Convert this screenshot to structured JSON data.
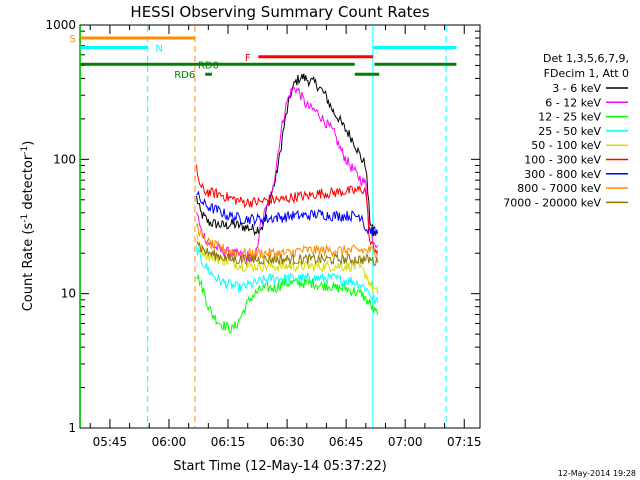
{
  "chart_data": {
    "type": "line",
    "title": "HESSI Observing Summary Count Rates",
    "xlabel": "Start Time (12-May-14 05:37:22)",
    "ylabel_prefix": "Count Rate (s",
    "ylabel_sup1": "-1",
    "ylabel_mid": " detector",
    "ylabel_sup2": "-1",
    "ylabel_suffix": ")",
    "ylabel": "Count Rate (s-1 detector-1)",
    "y_scale": "log",
    "ylim": [
      1,
      1000
    ],
    "xlim_min": [
      337.4,
      439
    ],
    "x_ticks": [
      {
        "t": 345,
        "label": "05:45"
      },
      {
        "t": 360,
        "label": "06:00"
      },
      {
        "t": 375,
        "label": "06:15"
      },
      {
        "t": 390,
        "label": "06:30"
      },
      {
        "t": 405,
        "label": "06:45"
      },
      {
        "t": 420,
        "label": "07:00"
      },
      {
        "t": 435,
        "label": "07:15"
      }
    ],
    "y_ticks": [
      {
        "v": 1,
        "label": "1"
      },
      {
        "v": 10,
        "label": "10"
      },
      {
        "v": 100,
        "label": "100"
      },
      {
        "v": 1000,
        "label": "1000"
      }
    ],
    "legend_header": [
      "Det 1,3,5,6,7,9,",
      "FDecim 1, Att 0"
    ],
    "legend_position": "right",
    "series": [
      {
        "name": "3 - 6 keV",
        "color": "#000000",
        "points": [
          [
            367,
            52
          ],
          [
            368,
            40
          ],
          [
            370,
            34
          ],
          [
            372,
            33
          ],
          [
            374,
            32
          ],
          [
            376,
            33
          ],
          [
            378,
            32
          ],
          [
            380,
            31
          ],
          [
            382,
            30
          ],
          [
            384,
            32
          ],
          [
            385,
            45
          ],
          [
            386,
            55
          ],
          [
            387,
            70
          ],
          [
            388,
            100
          ],
          [
            389,
            160
          ],
          [
            390,
            230
          ],
          [
            391,
            310
          ],
          [
            392,
            370
          ],
          [
            393,
            400
          ],
          [
            394,
            410
          ],
          [
            395,
            395
          ],
          [
            396,
            380
          ],
          [
            397,
            370
          ],
          [
            398,
            350
          ],
          [
            399,
            320
          ],
          [
            400,
            290
          ],
          [
            401,
            250
          ],
          [
            402,
            220
          ],
          [
            403,
            205
          ],
          [
            404,
            180
          ],
          [
            405,
            165
          ],
          [
            406,
            150
          ],
          [
            407,
            135
          ],
          [
            408,
            115
          ],
          [
            409,
            100
          ],
          [
            410,
            90
          ],
          [
            411,
            36
          ],
          [
            412,
            28
          ],
          [
            413,
            28
          ]
        ]
      },
      {
        "name": "6 - 12 keV",
        "color": "#ff00ff",
        "points": [
          [
            367,
            42
          ],
          [
            368,
            30
          ],
          [
            370,
            24
          ],
          [
            373,
            21
          ],
          [
            376,
            20
          ],
          [
            379,
            19
          ],
          [
            381,
            18
          ],
          [
            382,
            18
          ],
          [
            383,
            30
          ],
          [
            384,
            38
          ],
          [
            385,
            45
          ],
          [
            386,
            55
          ],
          [
            387,
            80
          ],
          [
            388,
            130
          ],
          [
            389,
            200
          ],
          [
            390,
            270
          ],
          [
            391,
            320
          ],
          [
            392,
            340
          ],
          [
            393,
            320
          ],
          [
            394,
            280
          ],
          [
            395,
            250
          ],
          [
            396,
            240
          ],
          [
            397,
            230
          ],
          [
            398,
            220
          ],
          [
            399,
            200
          ],
          [
            400,
            185
          ],
          [
            401,
            170
          ],
          [
            402,
            155
          ],
          [
            403,
            130
          ],
          [
            404,
            112
          ],
          [
            405,
            100
          ],
          [
            406,
            90
          ],
          [
            407,
            82
          ],
          [
            408,
            75
          ],
          [
            409,
            70
          ],
          [
            410,
            65
          ],
          [
            411,
            30
          ],
          [
            412,
            25
          ],
          [
            413,
            23
          ]
        ]
      },
      {
        "name": "12 - 25 keV",
        "color": "#00ff00",
        "points": [
          [
            367,
            14
          ],
          [
            368,
            12
          ],
          [
            369,
            10
          ],
          [
            370,
            8
          ],
          [
            371,
            7
          ],
          [
            372,
            6.5
          ],
          [
            373,
            6
          ],
          [
            374,
            5.8
          ],
          [
            375,
            5.6
          ],
          [
            376,
            5.4
          ],
          [
            377,
            5.8
          ],
          [
            378,
            6.5
          ],
          [
            379,
            7.5
          ],
          [
            380,
            8.5
          ],
          [
            381,
            9.5
          ],
          [
            382,
            10
          ],
          [
            383,
            10.5
          ],
          [
            384,
            11
          ],
          [
            385,
            11
          ],
          [
            386,
            11
          ],
          [
            387,
            11
          ],
          [
            388,
            11.5
          ],
          [
            389,
            12
          ],
          [
            390,
            12
          ],
          [
            391,
            12
          ],
          [
            392,
            12
          ],
          [
            393,
            12
          ],
          [
            394,
            12
          ],
          [
            395,
            12
          ],
          [
            396,
            12
          ],
          [
            397,
            12
          ],
          [
            398,
            11.5
          ],
          [
            399,
            11.5
          ],
          [
            400,
            11.5
          ],
          [
            401,
            11.5
          ],
          [
            402,
            11
          ],
          [
            403,
            11
          ],
          [
            404,
            11
          ],
          [
            405,
            11
          ],
          [
            406,
            10.5
          ],
          [
            407,
            10.5
          ],
          [
            408,
            10
          ],
          [
            409,
            10
          ],
          [
            410,
            9
          ],
          [
            411,
            8.5
          ],
          [
            412,
            7.5
          ],
          [
            413,
            7
          ]
        ]
      },
      {
        "name": "25 - 50 keV",
        "color": "#00ffff",
        "points": [
          [
            367,
            22
          ],
          [
            368,
            18
          ],
          [
            370,
            15
          ],
          [
            372,
            13
          ],
          [
            374,
            12
          ],
          [
            376,
            11.5
          ],
          [
            378,
            11
          ],
          [
            380,
            11.5
          ],
          [
            382,
            12
          ],
          [
            384,
            12.5
          ],
          [
            386,
            13
          ],
          [
            388,
            13
          ],
          [
            390,
            13
          ],
          [
            392,
            13
          ],
          [
            394,
            13
          ],
          [
            396,
            13
          ],
          [
            398,
            13
          ],
          [
            400,
            13
          ],
          [
            402,
            13
          ],
          [
            404,
            12.5
          ],
          [
            406,
            12.5
          ],
          [
            408,
            12
          ],
          [
            410,
            11
          ],
          [
            411,
            10
          ],
          [
            412,
            9
          ],
          [
            413,
            8.5
          ]
        ]
      },
      {
        "name": "50 - 100 keV",
        "color": "#dcdc00",
        "points": [
          [
            367,
            28
          ],
          [
            368,
            22
          ],
          [
            370,
            19
          ],
          [
            373,
            18
          ],
          [
            376,
            17
          ],
          [
            379,
            16
          ],
          [
            382,
            16
          ],
          [
            386,
            16
          ],
          [
            390,
            16
          ],
          [
            394,
            16
          ],
          [
            398,
            16
          ],
          [
            402,
            16
          ],
          [
            406,
            16
          ],
          [
            408,
            16
          ],
          [
            410,
            14
          ],
          [
            411,
            12
          ],
          [
            412,
            11
          ],
          [
            413,
            10
          ]
        ]
      },
      {
        "name": "100 - 300 keV",
        "color": "#ff0000",
        "points": [
          [
            367,
            85
          ],
          [
            368,
            62
          ],
          [
            369,
            58
          ],
          [
            371,
            56
          ],
          [
            373,
            55
          ],
          [
            375,
            52
          ],
          [
            377,
            50
          ],
          [
            379,
            48
          ],
          [
            381,
            48
          ],
          [
            383,
            48
          ],
          [
            385,
            50
          ],
          [
            387,
            50
          ],
          [
            389,
            50
          ],
          [
            391,
            52
          ],
          [
            393,
            53
          ],
          [
            395,
            53
          ],
          [
            397,
            55
          ],
          [
            399,
            56
          ],
          [
            401,
            56
          ],
          [
            403,
            57
          ],
          [
            405,
            58
          ],
          [
            407,
            58
          ],
          [
            409,
            60
          ],
          [
            410,
            58
          ],
          [
            411,
            24
          ],
          [
            412,
            22
          ],
          [
            413,
            21
          ]
        ]
      },
      {
        "name": "300 - 800 keV",
        "color": "#0000ff",
        "points": [
          [
            367,
            55
          ],
          [
            368,
            50
          ],
          [
            369,
            46
          ],
          [
            371,
            43
          ],
          [
            373,
            41
          ],
          [
            375,
            38
          ],
          [
            377,
            37
          ],
          [
            379,
            36
          ],
          [
            381,
            36
          ],
          [
            383,
            36
          ],
          [
            385,
            36
          ],
          [
            387,
            37
          ],
          [
            389,
            37
          ],
          [
            391,
            38
          ],
          [
            393,
            38
          ],
          [
            395,
            38
          ],
          [
            397,
            39
          ],
          [
            399,
            39
          ],
          [
            401,
            38
          ],
          [
            403,
            38
          ],
          [
            405,
            38
          ],
          [
            407,
            38
          ],
          [
            409,
            38
          ],
          [
            410,
            30
          ],
          [
            411,
            30
          ],
          [
            412,
            29
          ],
          [
            413,
            28
          ]
        ]
      },
      {
        "name": "800 - 7000 keV",
        "color": "#ff8c00",
        "points": [
          [
            367,
            33
          ],
          [
            368,
            28
          ],
          [
            369,
            25
          ],
          [
            371,
            23
          ],
          [
            373,
            22
          ],
          [
            375,
            21
          ],
          [
            377,
            20
          ],
          [
            379,
            20
          ],
          [
            381,
            20
          ],
          [
            383,
            20
          ],
          [
            385,
            20
          ],
          [
            387,
            20
          ],
          [
            389,
            20
          ],
          [
            391,
            20
          ],
          [
            393,
            21
          ],
          [
            395,
            21
          ],
          [
            397,
            21
          ],
          [
            399,
            21
          ],
          [
            401,
            21
          ],
          [
            403,
            21
          ],
          [
            405,
            21
          ],
          [
            407,
            21
          ],
          [
            409,
            21
          ],
          [
            411,
            21
          ],
          [
            413,
            20
          ]
        ]
      },
      {
        "name": "7000 - 20000 keV",
        "color": "#8b7500",
        "points": [
          [
            367,
            26
          ],
          [
            368,
            22
          ],
          [
            370,
            20
          ],
          [
            373,
            19
          ],
          [
            376,
            18
          ],
          [
            379,
            18
          ],
          [
            382,
            18
          ],
          [
            386,
            18
          ],
          [
            390,
            18
          ],
          [
            394,
            18
          ],
          [
            398,
            18
          ],
          [
            402,
            18
          ],
          [
            406,
            18
          ],
          [
            410,
            18
          ],
          [
            411,
            18
          ],
          [
            413,
            17
          ]
        ]
      }
    ],
    "vertical_lines": [
      {
        "t": 337.5,
        "color": "#00c800",
        "style": "solid"
      },
      {
        "t": 354.6,
        "color": "#00ffff",
        "style": "dashed"
      },
      {
        "t": 366.6,
        "color": "#ff8c00",
        "style": "dashed"
      },
      {
        "t": 411.8,
        "color": "#00ffff",
        "style": "solid"
      },
      {
        "t": 430.4,
        "color": "#00ffff",
        "style": "dashed"
      }
    ],
    "flag_bars": [
      {
        "label": "S",
        "color": "#ff8c00",
        "y": 800,
        "segments": [
          [
            337.5,
            366.6
          ]
        ],
        "label_t": 335.5
      },
      {
        "label": "N",
        "color": "#00ffff",
        "y": 680,
        "segments": [
          [
            337.5,
            354.6
          ],
          [
            412,
            433
          ]
        ],
        "label_t": 357.5
      },
      {
        "label": "F",
        "color": "#ff0000",
        "y": 580,
        "segments": [
          [
            382.7,
            411.8
          ]
        ],
        "label_t": 380.0
      },
      {
        "label": "RD0",
        "color": "#008000",
        "y": 510,
        "segments": [
          [
            337.5,
            407.2
          ],
          [
            412.2,
            433
          ]
        ],
        "label_t": 370.0
      },
      {
        "label": "RD6",
        "color": "#008000",
        "y": 430,
        "segments": [
          [
            369.2,
            370.9
          ],
          [
            407.2,
            413.4
          ]
        ],
        "label_t": 364.0
      }
    ],
    "footer_timestamp": "12-May-2014 19:28"
  }
}
